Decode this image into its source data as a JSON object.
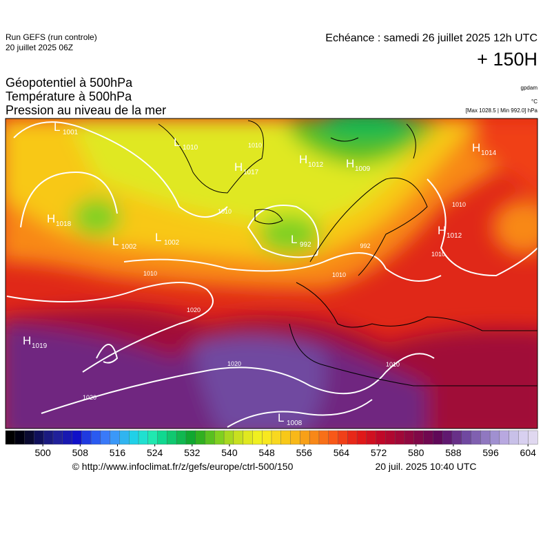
{
  "header": {
    "run": "Run GEFS (run controle)",
    "run_date": "20 juillet 2025 06Z",
    "echeance": "Echéance : samedi 26 juillet 2025 12h UTC",
    "lead": "+ 150H",
    "titles": [
      "Géopotentiel à 500hPa",
      "Température à 500hPa",
      "Pression au niveau de la mer"
    ],
    "units": [
      "gpdam",
      "°C",
      "[Max 1028.5 | Min 992.0] hPa"
    ]
  },
  "map": {
    "centers": [
      {
        "type": "L",
        "value": 1001
      },
      {
        "type": "L",
        "value": 1010
      },
      {
        "type": "H",
        "value": 1017
      },
      {
        "type": "H",
        "value": 1012
      },
      {
        "type": "H",
        "value": 1009
      },
      {
        "type": "H",
        "value": 1014
      },
      {
        "type": "H",
        "value": 1018
      },
      {
        "type": "L",
        "value": 1002
      },
      {
        "type": "L",
        "value": 1002
      },
      {
        "type": "L",
        "value": 992
      },
      {
        "type": "H",
        "value": 1012
      },
      {
        "type": "H",
        "value": 1019
      },
      {
        "type": "L",
        "value": 1008
      }
    ],
    "isobar_labels": [
      1010,
      1010,
      1010,
      1010,
      1010,
      1010,
      1020,
      1020,
      1020,
      992,
      1010
    ]
  },
  "colorbar": {
    "range": [
      492,
      604
    ],
    "ticks": [
      500,
      508,
      516,
      524,
      532,
      540,
      548,
      556,
      564,
      572,
      580,
      588,
      596,
      604
    ],
    "colors": [
      "#000000",
      "#000010",
      "#0a0a30",
      "#10105a",
      "#1a1a80",
      "#20209a",
      "#1818b0",
      "#1010c8",
      "#1f3ae0",
      "#2a5af0",
      "#3a7af8",
      "#3a98f8",
      "#30b4f0",
      "#20d0e8",
      "#20e0d0",
      "#20e8b0",
      "#10d890",
      "#10c870",
      "#10b850",
      "#10a830",
      "#30b020",
      "#58c020",
      "#80d020",
      "#a8d820",
      "#c8e020",
      "#e0e820",
      "#f0f020",
      "#f8e820",
      "#f8d820",
      "#f8c818",
      "#f8b818",
      "#f8a018",
      "#f88818",
      "#f87018",
      "#f85818",
      "#f04018",
      "#e82818",
      "#e01818",
      "#d01020",
      "#c00828",
      "#b00830",
      "#a00838",
      "#900840",
      "#800848",
      "#700850",
      "#600858",
      "#601870",
      "#683088",
      "#7048a0",
      "#8060b0",
      "#9078c0",
      "#a090d0",
      "#b8a8e0",
      "#c8c0e8",
      "#d8d0f0",
      "#e0d8f0"
    ]
  },
  "footer": {
    "url": "© http://www.infoclimat.fr/z/gefs/europe/ctrl-500/150",
    "time": "20 juil. 2025 10:40 UTC"
  }
}
